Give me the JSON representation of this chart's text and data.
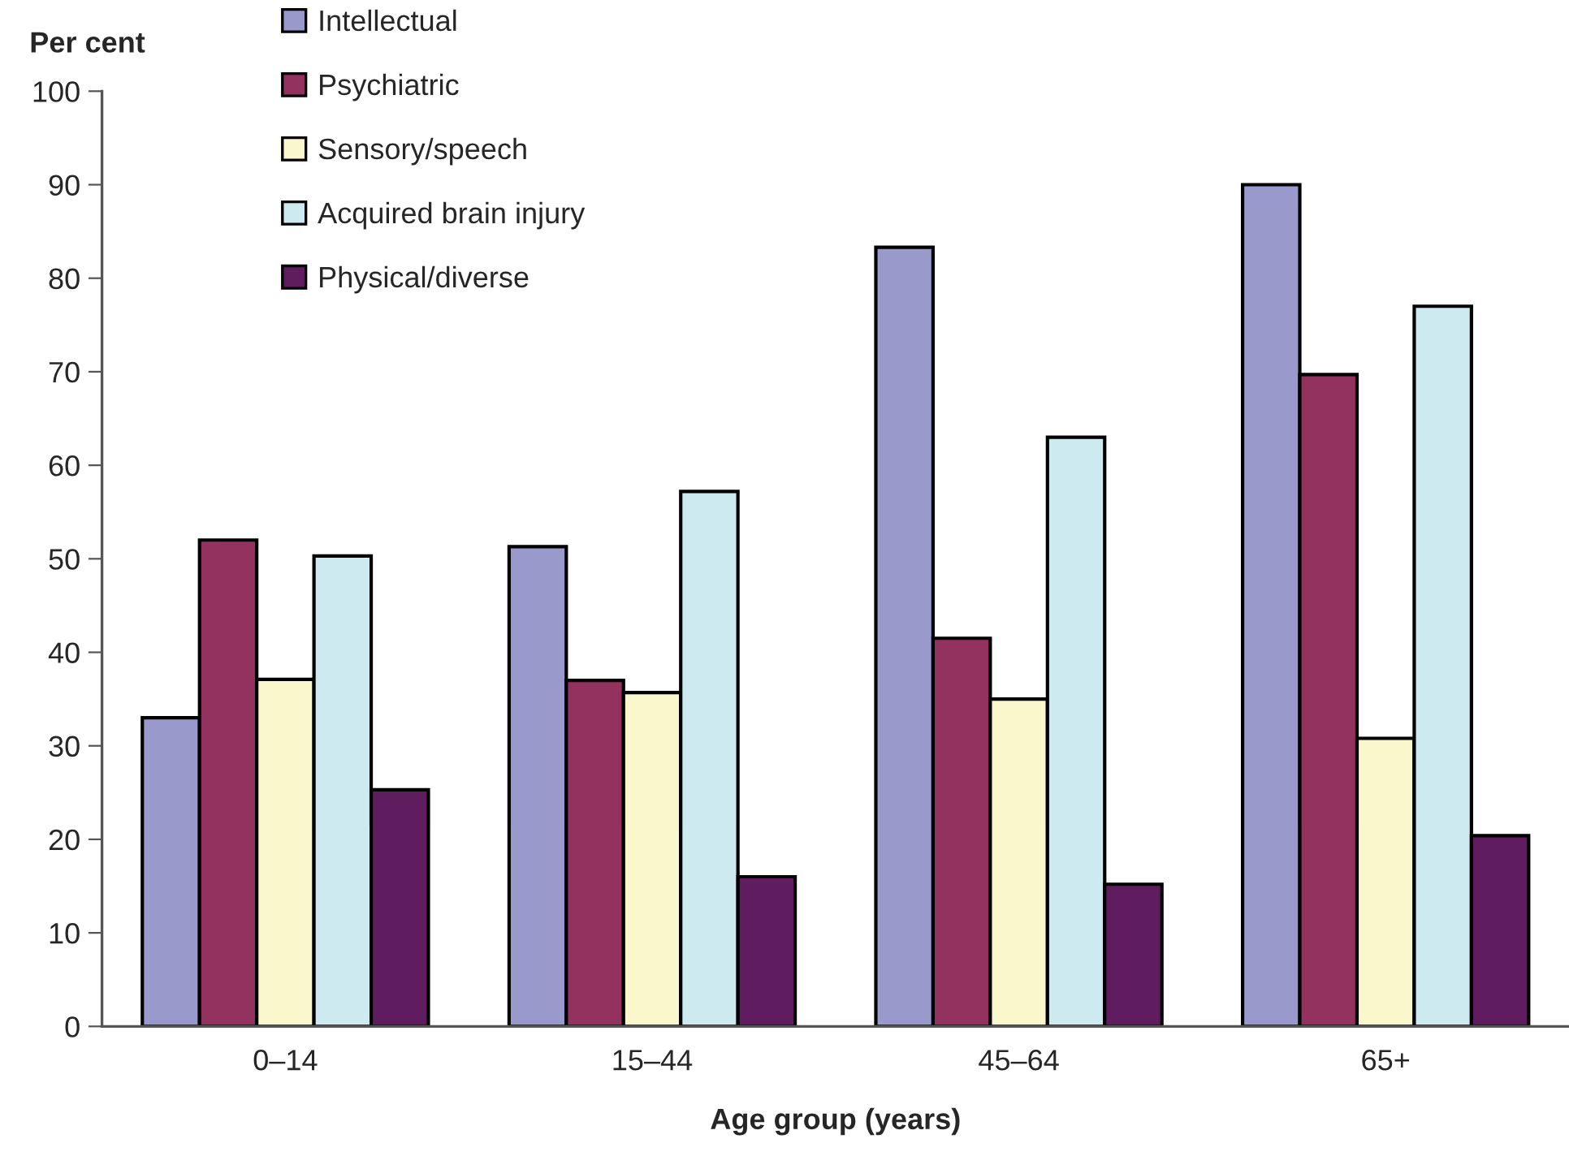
{
  "chart_data": {
    "type": "bar",
    "xlabel": "Age group (years)",
    "ylabel": "Per cent",
    "categories": [
      "0–14",
      "15–44",
      "45–64",
      "65+"
    ],
    "series": [
      {
        "name": "Intellectual",
        "color": "#9999cc",
        "values": [
          33,
          51.3,
          83.3,
          90
        ]
      },
      {
        "name": "Psychiatric",
        "color": "#93325e",
        "values": [
          52,
          37,
          41.5,
          69.7
        ]
      },
      {
        "name": "Sensory/speech",
        "color": "#faf7cc",
        "values": [
          37.1,
          35.7,
          35,
          30.8
        ]
      },
      {
        "name": "Acquired brain injury",
        "color": "#cdeaf0",
        "values": [
          50.3,
          57.2,
          63,
          77
        ]
      },
      {
        "name": "Physical/diverse",
        "color": "#5f1d5f",
        "values": [
          25.3,
          16,
          15.2,
          20.4
        ]
      }
    ],
    "ylim": [
      0,
      100
    ],
    "yticks": [
      0,
      10,
      20,
      30,
      40,
      50,
      60,
      70,
      80,
      90,
      100
    ],
    "grid": false,
    "legend": "top left"
  }
}
